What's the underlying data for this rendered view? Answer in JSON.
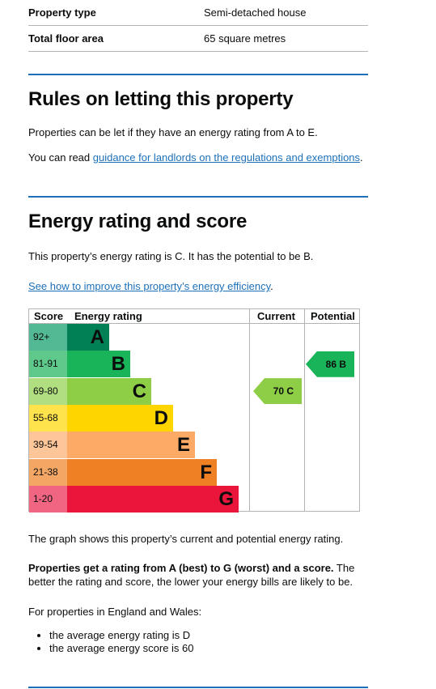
{
  "summary": [
    {
      "label": "Property type",
      "value": "Semi-detached house"
    },
    {
      "label": "Total floor area",
      "value": "65 square metres"
    }
  ],
  "rules": {
    "heading": "Rules on letting this property",
    "para1": "Properties can be let if they have an energy rating from A to E.",
    "para2_prefix": "You can read ",
    "para2_link": "guidance for landlords on the regulations and exemptions",
    "para2_suffix": "."
  },
  "energy": {
    "heading": "Energy rating and score",
    "para1": "This property’s energy rating is C. It has the potential to be B.",
    "link": "See how to improve this property’s energy efficiency",
    "link_suffix": "."
  },
  "chart_data": {
    "type": "table",
    "headers": {
      "score": "Score",
      "rating": "Energy rating",
      "current": "Current",
      "potential": "Potential"
    },
    "bands": [
      {
        "range": "92+",
        "letter": "A",
        "color": "#008054"
      },
      {
        "range": "81-91",
        "letter": "B",
        "color": "#19b459"
      },
      {
        "range": "69-80",
        "letter": "C",
        "color": "#8dce46"
      },
      {
        "range": "55-68",
        "letter": "D",
        "color": "#ffd500"
      },
      {
        "range": "39-54",
        "letter": "E",
        "color": "#fcaa65"
      },
      {
        "range": "21-38",
        "letter": "F",
        "color": "#ef8023"
      },
      {
        "range": "1-20",
        "letter": "G",
        "color": "#e9153b"
      }
    ],
    "current": {
      "score": 70,
      "letter": "C",
      "label": "70 C",
      "color": "#8dce46"
    },
    "potential": {
      "score": 86,
      "letter": "B",
      "label": "86 B",
      "color": "#19b459"
    }
  },
  "after": {
    "graph_note": "The graph shows this property’s current and potential energy rating.",
    "bold_part": "Properties get a rating from A (best) to G (worst) and a score.",
    "rest_part": " The better the rating and score, the lower your energy bills are likely to be.",
    "england": "For properties in England and Wales:",
    "bullets": [
      "the average energy rating is D",
      "the average energy score is 60"
    ]
  }
}
